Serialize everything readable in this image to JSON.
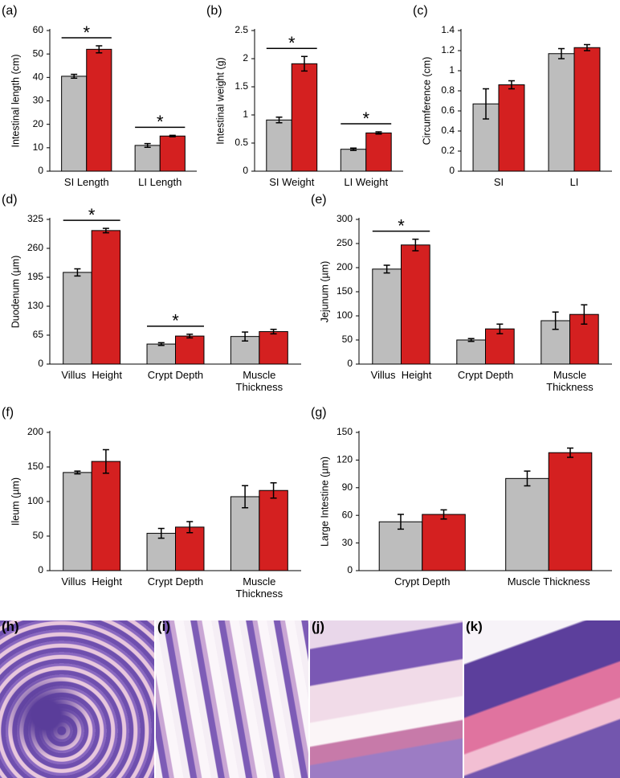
{
  "chart_data": [
    {
      "type": "bar",
      "panel_label": "(a)",
      "y_label": "Intestinal length (cm)",
      "categories": [
        "SI Length",
        "LI Length"
      ],
      "series": [
        {
          "color": "#bdbdbd",
          "values": [
            40.5,
            11
          ],
          "errors": [
            0.8,
            0.8
          ]
        },
        {
          "color": "#d42020",
          "values": [
            52,
            15
          ],
          "errors": [
            1.5,
            0.3
          ]
        }
      ],
      "significance": [
        "*",
        "*"
      ],
      "ylim": [
        0,
        60
      ],
      "yticks": [
        0,
        10,
        20,
        30,
        40,
        50,
        60
      ]
    },
    {
      "type": "bar",
      "panel_label": "(b)",
      "y_label": "Intestinal weight (g)",
      "categories": [
        "SI Weight",
        "LI Weight"
      ],
      "series": [
        {
          "color": "#bdbdbd",
          "values": [
            0.91,
            0.39
          ],
          "errors": [
            0.05,
            0.02
          ]
        },
        {
          "color": "#d42020",
          "values": [
            1.91,
            0.68
          ],
          "errors": [
            0.13,
            0.02
          ]
        }
      ],
      "significance": [
        "*",
        "*"
      ],
      "ylim": [
        0,
        2.5
      ],
      "yticks": [
        0,
        0.5,
        1,
        1.5,
        2,
        2.5
      ]
    },
    {
      "type": "bar",
      "panel_label": "(c)",
      "y_label": "Circumference (cm)",
      "categories": [
        "SI",
        "LI"
      ],
      "series": [
        {
          "color": "#bdbdbd",
          "values": [
            0.67,
            1.17
          ],
          "errors": [
            0.15,
            0.05
          ]
        },
        {
          "color": "#d42020",
          "values": [
            0.86,
            1.23
          ],
          "errors": [
            0.04,
            0.03
          ]
        }
      ],
      "ylim": [
        0,
        1.4
      ],
      "yticks": [
        0,
        0.2,
        0.4,
        0.6,
        0.8,
        1,
        1.2,
        1.4
      ]
    },
    {
      "type": "bar",
      "panel_label": "(d)",
      "y_label": "Duodenum  (µm)",
      "categories": [
        "Villus  Height",
        "Crypt Depth",
        "Muscle Thickness"
      ],
      "series": [
        {
          "color": "#bdbdbd",
          "values": [
            206,
            45,
            62
          ],
          "errors": [
            8,
            3,
            10
          ]
        },
        {
          "color": "#d42020",
          "values": [
            300,
            63,
            73
          ],
          "errors": [
            5,
            4,
            5
          ]
        }
      ],
      "significance": [
        "*",
        "*",
        null
      ],
      "ylim": [
        0,
        325
      ],
      "yticks": [
        0,
        65,
        130,
        195,
        260,
        325
      ]
    },
    {
      "type": "bar",
      "panel_label": "(e)",
      "y_label": "Jejunum (µm)",
      "categories": [
        "Villus  Height",
        "Crypt Depth",
        "Muscle Thickness"
      ],
      "series": [
        {
          "color": "#bdbdbd",
          "values": [
            197,
            50,
            90
          ],
          "errors": [
            8,
            3,
            18
          ]
        },
        {
          "color": "#d42020",
          "values": [
            247,
            73,
            103
          ],
          "errors": [
            12,
            10,
            20
          ]
        }
      ],
      "significance": [
        "*",
        null,
        null
      ],
      "ylim": [
        0,
        300
      ],
      "yticks": [
        0,
        50,
        100,
        150,
        200,
        250,
        300
      ]
    },
    {
      "type": "bar",
      "panel_label": "(f)",
      "y_label": "Ileum (µm)",
      "categories": [
        "Villus  Height",
        "Crypt Depth",
        "Muscle Thickness"
      ],
      "series": [
        {
          "color": "#bdbdbd",
          "values": [
            142,
            54,
            107
          ],
          "errors": [
            2,
            7,
            16
          ]
        },
        {
          "color": "#d42020",
          "values": [
            158,
            63,
            116
          ],
          "errors": [
            17,
            8,
            11
          ]
        }
      ],
      "ylim": [
        0,
        200
      ],
      "yticks": [
        0,
        50,
        100,
        150,
        200
      ]
    },
    {
      "type": "bar",
      "panel_label": "(g)",
      "y_label": "Large Intestine (µm)",
      "categories": [
        "Crypt Depth",
        "Muscle Thickness"
      ],
      "series": [
        {
          "color": "#bdbdbd",
          "values": [
            53,
            100
          ],
          "errors": [
            8,
            8
          ]
        },
        {
          "color": "#d42020",
          "values": [
            61,
            128
          ],
          "errors": [
            5,
            5
          ]
        }
      ],
      "ylim": [
        0,
        150
      ],
      "yticks": [
        0,
        30,
        60,
        90,
        120,
        150
      ]
    }
  ],
  "images": [
    {
      "label": "(h)"
    },
    {
      "label": "(i)"
    },
    {
      "label": "(j)"
    },
    {
      "label": "(k)"
    }
  ]
}
